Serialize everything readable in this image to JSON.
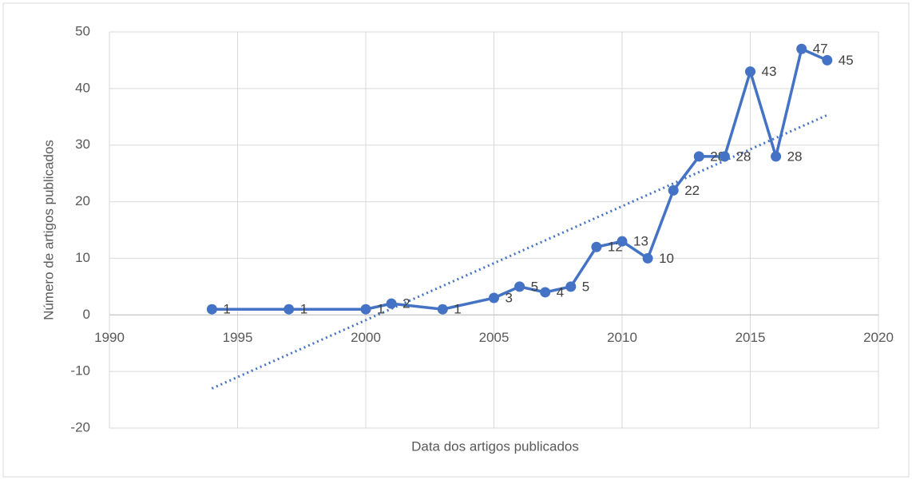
{
  "chart_data": {
    "type": "line",
    "x_label": "Data dos artigos publicados",
    "y_label": "Número de artigos publicados",
    "x": [
      1994,
      1997,
      2000,
      2001,
      2003,
      2005,
      2006,
      2007,
      2008,
      2009,
      2010,
      2011,
      2012,
      2013,
      2014,
      2015,
      2016,
      2017,
      2018
    ],
    "values": [
      1,
      1,
      1,
      2,
      1,
      3,
      5,
      4,
      5,
      12,
      13,
      10,
      22,
      28,
      28,
      43,
      28,
      47,
      45
    ],
    "color": "#4472c4",
    "markers": true,
    "data_labels": true,
    "trendline": {
      "x": [
        1994,
        2018
      ],
      "values": [
        -13,
        35.3
      ],
      "style": "dotted"
    },
    "xlim": [
      1990,
      2020
    ],
    "xticks": [
      1990,
      1995,
      2000,
      2005,
      2010,
      2015,
      2020
    ],
    "ylim": [
      -20,
      50
    ],
    "yticks": [
      -20,
      -10,
      0,
      10,
      20,
      30,
      40,
      50
    ],
    "grid": true
  }
}
